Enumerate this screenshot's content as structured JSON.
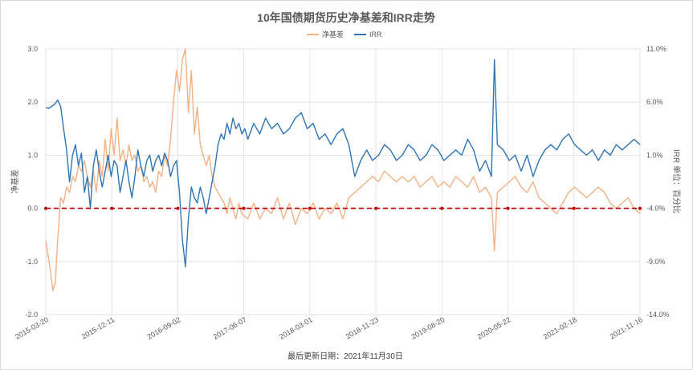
{
  "chart_data": {
    "type": "line",
    "title": "10年国债期货历史净基差和IRR走势",
    "footer": "最后更新日期：2021年11月30日",
    "ylabel_left": "净基差",
    "ylabel_right": "IRR 单位：百分比",
    "legend": {
      "position": "top-center",
      "entries": [
        "净基差",
        "IRR"
      ]
    },
    "grid": true,
    "x_tick_labels": [
      "2015-03-20",
      "2015-12-11",
      "2016-09-02",
      "2017-06-07",
      "2018-03-01",
      "2018-11-23",
      "2019-08-20",
      "2020-05-22",
      "2021-02-18",
      "2021-11-16"
    ],
    "x_tick_positions": [
      0,
      0.1111,
      0.2222,
      0.3333,
      0.4444,
      0.5556,
      0.6667,
      0.7778,
      0.8889,
      1.0
    ],
    "y_left": {
      "ylim": [
        -2.0,
        3.0
      ],
      "ticks": [
        "-2.0",
        "-1.0",
        "0.0",
        "1.0",
        "2.0",
        "3.0"
      ]
    },
    "y_right": {
      "ylim": [
        -14.0,
        11.0
      ],
      "ticks": [
        "-14.0%",
        "-9.0%",
        "-4.0%",
        "1.0%",
        "6.0%",
        "11.0%"
      ]
    },
    "reference_line": {
      "axis": "left",
      "value": 0.0,
      "color": "#c00000",
      "style": "dashed"
    },
    "series": [
      {
        "name": "净基差",
        "axis": "left",
        "color": "#f4b183",
        "x": [
          0,
          0.004,
          0.008,
          0.012,
          0.016,
          0.02,
          0.025,
          0.03,
          0.035,
          0.04,
          0.045,
          0.05,
          0.055,
          0.06,
          0.065,
          0.07,
          0.075,
          0.08,
          0.085,
          0.09,
          0.095,
          0.1,
          0.105,
          0.11,
          0.115,
          0.12,
          0.125,
          0.13,
          0.135,
          0.14,
          0.145,
          0.15,
          0.155,
          0.16,
          0.165,
          0.17,
          0.175,
          0.18,
          0.185,
          0.19,
          0.195,
          0.2,
          0.205,
          0.21,
          0.215,
          0.22,
          0.225,
          0.23,
          0.235,
          0.24,
          0.245,
          0.25,
          0.255,
          0.26,
          0.265,
          0.27,
          0.275,
          0.28,
          0.285,
          0.29,
          0.295,
          0.3,
          0.305,
          0.31,
          0.315,
          0.32,
          0.325,
          0.33,
          0.34,
          0.35,
          0.36,
          0.37,
          0.38,
          0.39,
          0.4,
          0.41,
          0.42,
          0.43,
          0.44,
          0.45,
          0.46,
          0.47,
          0.48,
          0.49,
          0.5,
          0.51,
          0.52,
          0.53,
          0.54,
          0.55,
          0.56,
          0.57,
          0.58,
          0.59,
          0.6,
          0.61,
          0.62,
          0.63,
          0.64,
          0.65,
          0.66,
          0.67,
          0.68,
          0.69,
          0.7,
          0.71,
          0.72,
          0.73,
          0.74,
          0.75,
          0.755,
          0.76,
          0.77,
          0.78,
          0.79,
          0.8,
          0.81,
          0.82,
          0.83,
          0.84,
          0.85,
          0.86,
          0.87,
          0.88,
          0.89,
          0.9,
          0.91,
          0.92,
          0.93,
          0.94,
          0.95,
          0.96,
          0.97,
          0.98,
          0.99,
          1.0
        ],
        "values": [
          -0.6,
          -0.9,
          -1.2,
          -1.55,
          -1.4,
          -0.6,
          0.2,
          0.1,
          0.4,
          0.3,
          0.6,
          0.5,
          0.8,
          0.7,
          0.9,
          0.6,
          0.4,
          0.7,
          0.3,
          0.9,
          0.6,
          1.3,
          0.7,
          1.5,
          1.0,
          1.7,
          0.9,
          1.1,
          0.8,
          1.2,
          0.9,
          1.0,
          0.7,
          0.8,
          0.5,
          0.6,
          0.4,
          0.5,
          0.3,
          0.7,
          0.6,
          1.0,
          0.8,
          1.3,
          2.0,
          2.6,
          2.2,
          2.8,
          3.0,
          1.8,
          2.6,
          1.4,
          1.9,
          1.2,
          1.0,
          0.8,
          1.0,
          0.6,
          0.4,
          0.3,
          0.2,
          0.1,
          -0.1,
          0.2,
          0.0,
          -0.2,
          0.1,
          -0.1,
          -0.2,
          0.1,
          -0.2,
          0.0,
          -0.1,
          0.2,
          -0.2,
          0.1,
          -0.3,
          0.0,
          -0.1,
          0.1,
          -0.2,
          0.0,
          -0.1,
          0.1,
          -0.2,
          0.2,
          0.3,
          0.4,
          0.5,
          0.6,
          0.5,
          0.7,
          0.6,
          0.5,
          0.6,
          0.5,
          0.6,
          0.4,
          0.5,
          0.6,
          0.4,
          0.5,
          0.4,
          0.6,
          0.5,
          0.4,
          0.6,
          0.3,
          0.4,
          0.2,
          -0.8,
          0.3,
          0.4,
          0.5,
          0.6,
          0.4,
          0.3,
          0.5,
          0.2,
          0.1,
          0.0,
          -0.1,
          0.1,
          0.3,
          0.4,
          0.3,
          0.2,
          0.3,
          0.4,
          0.3,
          0.1,
          0.0,
          0.1,
          0.2,
          0.0,
          -0.1
        ]
      },
      {
        "name": "IRR",
        "axis": "right",
        "color": "#2e75b6",
        "x": [
          0,
          0.005,
          0.01,
          0.015,
          0.02,
          0.025,
          0.03,
          0.035,
          0.04,
          0.045,
          0.05,
          0.055,
          0.06,
          0.065,
          0.07,
          0.075,
          0.08,
          0.085,
          0.09,
          0.095,
          0.1,
          0.105,
          0.11,
          0.115,
          0.12,
          0.125,
          0.13,
          0.135,
          0.14,
          0.145,
          0.15,
          0.155,
          0.16,
          0.165,
          0.17,
          0.175,
          0.18,
          0.185,
          0.19,
          0.195,
          0.2,
          0.205,
          0.21,
          0.215,
          0.22,
          0.225,
          0.23,
          0.235,
          0.24,
          0.245,
          0.25,
          0.255,
          0.26,
          0.265,
          0.27,
          0.275,
          0.28,
          0.285,
          0.29,
          0.295,
          0.3,
          0.305,
          0.31,
          0.315,
          0.32,
          0.325,
          0.33,
          0.335,
          0.34,
          0.35,
          0.36,
          0.37,
          0.38,
          0.39,
          0.4,
          0.41,
          0.42,
          0.43,
          0.44,
          0.45,
          0.46,
          0.47,
          0.48,
          0.49,
          0.5,
          0.51,
          0.52,
          0.53,
          0.54,
          0.55,
          0.56,
          0.57,
          0.58,
          0.59,
          0.6,
          0.61,
          0.62,
          0.63,
          0.64,
          0.65,
          0.66,
          0.67,
          0.68,
          0.69,
          0.7,
          0.71,
          0.72,
          0.73,
          0.74,
          0.75,
          0.755,
          0.76,
          0.77,
          0.78,
          0.79,
          0.8,
          0.81,
          0.82,
          0.83,
          0.84,
          0.85,
          0.86,
          0.87,
          0.88,
          0.89,
          0.9,
          0.91,
          0.92,
          0.93,
          0.94,
          0.95,
          0.96,
          0.97,
          0.98,
          0.99,
          1.0
        ],
        "values": [
          5.5,
          5.4,
          5.6,
          5.8,
          6.2,
          5.6,
          3.5,
          1.5,
          -1.5,
          1.0,
          2.0,
          0.0,
          1.2,
          -2.5,
          -1.0,
          -4.0,
          0.0,
          1.5,
          -0.5,
          -2.0,
          -0.5,
          1.0,
          -1.0,
          0.5,
          0.0,
          -2.5,
          -1.0,
          0.5,
          -1.5,
          -3.0,
          -1.0,
          1.5,
          0.0,
          -1.0,
          0.5,
          1.0,
          -0.5,
          0.5,
          1.0,
          0.0,
          1.2,
          0.5,
          -1.0,
          0.0,
          0.5,
          -2.5,
          -7.0,
          -9.5,
          -5.0,
          -2.0,
          -3.0,
          -3.5,
          -2.0,
          -3.0,
          -4.5,
          -3.0,
          -1.5,
          0.0,
          2.0,
          3.0,
          2.5,
          4.0,
          3.0,
          4.5,
          3.5,
          4.0,
          3.0,
          3.5,
          2.5,
          4.0,
          3.0,
          4.5,
          3.5,
          4.0,
          3.0,
          3.5,
          4.5,
          5.0,
          3.5,
          4.0,
          2.5,
          3.0,
          2.0,
          3.0,
          3.5,
          2.0,
          -1.0,
          0.5,
          1.5,
          0.5,
          1.0,
          2.0,
          1.5,
          0.5,
          1.0,
          2.0,
          1.5,
          0.5,
          1.0,
          2.0,
          1.5,
          0.5,
          1.0,
          1.5,
          1.0,
          2.5,
          1.5,
          -0.5,
          0.5,
          -1.0,
          10.0,
          2.0,
          1.5,
          0.5,
          1.0,
          -0.5,
          1.0,
          -1.0,
          0.5,
          1.5,
          2.0,
          1.5,
          2.5,
          3.0,
          2.0,
          1.5,
          1.0,
          1.5,
          0.5,
          1.5,
          1.0,
          2.0,
          1.5,
          2.0,
          2.5,
          2.0
        ]
      }
    ]
  }
}
